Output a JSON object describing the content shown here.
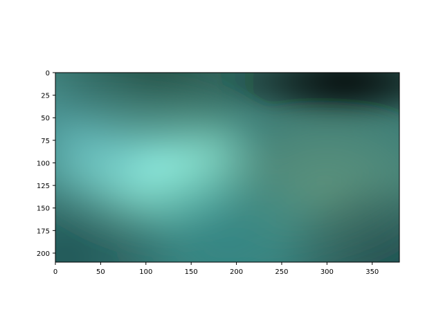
{
  "chart_data": {
    "type": "heatmap",
    "title": "",
    "xlabel": "",
    "ylabel": "",
    "xlim": [
      0,
      380
    ],
    "ylim": [
      210,
      0
    ],
    "x_ticks": [
      "0",
      "50",
      "100",
      "150",
      "200",
      "250",
      "300",
      "350"
    ],
    "y_ticks": [
      "0",
      "25",
      "50",
      "75",
      "100",
      "125",
      "150",
      "175",
      "200"
    ],
    "grid": false,
    "colormap_description": "smooth RGB image: bright aqua/mint glow centered near x≈110, y≈100; dark green/black band across top-right (x 200–380, y 0–40); dark teal edges at bottom corners",
    "color_blobs": [
      {
        "x": 110,
        "y": 100,
        "color": "#9ffde6",
        "strength": 1.0
      },
      {
        "x": 45,
        "y": 72,
        "color": "#5fb7c2",
        "strength": 0.6
      },
      {
        "x": 300,
        "y": 130,
        "color": "#6f9e7f",
        "strength": 0.6
      },
      {
        "x": 190,
        "y": 190,
        "color": "#2e8d8e",
        "strength": 0.6
      },
      {
        "x": 320,
        "y": 10,
        "color": "#000000",
        "strength": 1.0
      },
      {
        "x": 110,
        "y": 5,
        "color": "#123325",
        "strength": 0.6
      },
      {
        "x": 10,
        "y": 205,
        "color": "#0d2f36",
        "strength": 0.5
      },
      {
        "x": 370,
        "y": 205,
        "color": "#08222a",
        "strength": 0.5
      }
    ],
    "background_color": "#3f7f78"
  }
}
